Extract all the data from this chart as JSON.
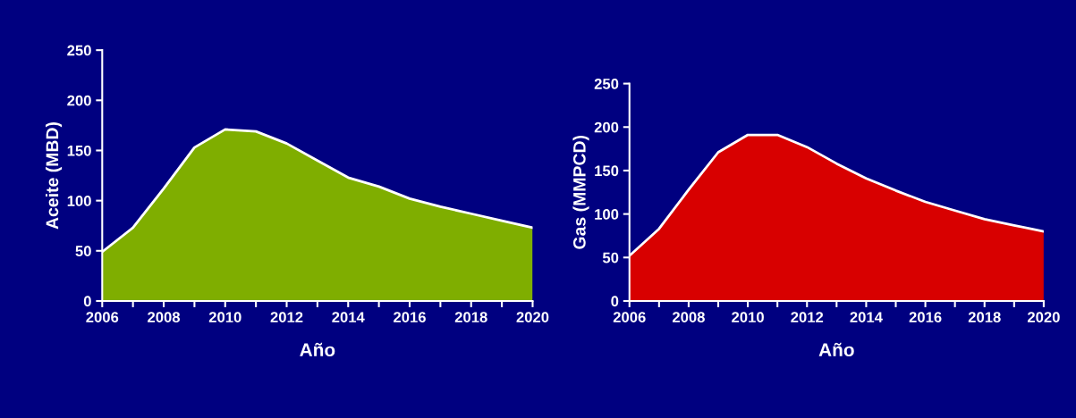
{
  "chart_data": [
    {
      "type": "area",
      "xlabel": "Año",
      "ylabel": "Aceite (MBD)",
      "x": [
        2006,
        2007,
        2008,
        2009,
        2010,
        2011,
        2012,
        2013,
        2014,
        2015,
        2016,
        2017,
        2018,
        2019,
        2020
      ],
      "series": [
        {
          "color": "#7fae00",
          "values": [
            49,
            73,
            112,
            153,
            171,
            169,
            157,
            140,
            123,
            114,
            102,
            94,
            87,
            80,
            73
          ]
        }
      ],
      "xlim": [
        2006,
        2020
      ],
      "xticks": [
        2006,
        {
          "value": 2007,
          "label": null
        },
        2008,
        {
          "value": 2009,
          "label": null
        },
        2010,
        {
          "value": 2011,
          "label": null
        },
        2012,
        {
          "value": 2013,
          "label": null
        },
        2014,
        {
          "value": 2015,
          "label": null
        },
        2016,
        {
          "value": 2017,
          "label": null
        },
        2018,
        {
          "value": 2019,
          "label": null
        },
        2020
      ],
      "ylim": [
        0,
        250
      ],
      "yticks": [
        0,
        50,
        100,
        150,
        200,
        250
      ],
      "grid": false
    },
    {
      "type": "area",
      "xlabel": "Año",
      "ylabel": "Gas (MMPCD)",
      "x": [
        2006,
        2007,
        2008,
        2009,
        2010,
        2011,
        2012,
        2013,
        2014,
        2015,
        2016,
        2017,
        2018,
        2019,
        2020
      ],
      "series": [
        {
          "color": "#d80000",
          "values": [
            52,
            83,
            128,
            171,
            191,
            191,
            177,
            158,
            141,
            127,
            114,
            104,
            94,
            87,
            80
          ]
        }
      ],
      "xlim": [
        2006,
        2020
      ],
      "xticks": [
        2006,
        {
          "value": 2007,
          "label": null
        },
        2008,
        {
          "value": 2009,
          "label": null
        },
        2010,
        {
          "value": 2011,
          "label": null
        },
        2012,
        {
          "value": 2013,
          "label": null
        },
        2014,
        {
          "value": 2015,
          "label": null
        },
        2016,
        {
          "value": 2017,
          "label": null
        },
        2018,
        {
          "value": 2019,
          "label": null
        },
        2020
      ],
      "ylim": [
        0,
        250
      ],
      "yticks": [
        0,
        50,
        100,
        150,
        200,
        250
      ],
      "grid": false
    }
  ]
}
